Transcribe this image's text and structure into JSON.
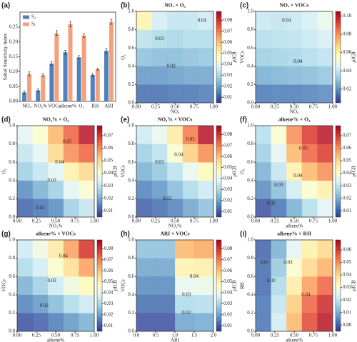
{
  "chart_data": [
    {
      "type": "bar",
      "panel_label": "(a)",
      "ylabel": "Sobol Sensitivity Index",
      "categories": [
        "NOₓ",
        "NO₂%",
        "VOCs",
        "alkene%",
        "O₃",
        "RH",
        "ARI"
      ],
      "series": [
        {
          "name": "S₁",
          "color": "#4f81bd",
          "values": [
            0.03,
            0.037,
            0.127,
            0.165,
            0.148,
            0.089,
            0.17
          ],
          "errors": [
            0.005,
            0.005,
            0.006,
            0.007,
            0.006,
            0.005,
            0.008
          ]
        },
        {
          "name": "Sₜ",
          "color": "#f4a07c",
          "values": [
            0.092,
            0.088,
            0.23,
            0.26,
            0.222,
            0.108,
            0.267
          ],
          "errors": [
            0.007,
            0.005,
            0.008,
            0.009,
            0.007,
            0.004,
            0.008
          ]
        }
      ],
      "ylim": [
        0,
        0.3
      ],
      "yticks": [
        {
          "value": 0,
          "label": "0.00"
        },
        0.05,
        {
          "value": 0.1,
          "label": "0.10"
        },
        0.15,
        {
          "value": 0.2,
          "label": "0.20"
        },
        0.25
      ],
      "legend": "upper left"
    },
    {
      "type": "heatmap",
      "panel_label": "(b)",
      "title": "NOₓ × O₃",
      "xlabel": "NOₓ",
      "ylabel": "O₃",
      "colorbar_label": "pICB",
      "xlim": [
        0,
        1
      ],
      "ylim": [
        0,
        1
      ],
      "clim": [
        0.005,
        0.088
      ],
      "xticks": [
        {
          "value": 0,
          "label": "0.00"
        },
        {
          "value": 0.25,
          "label": "0.25"
        },
        {
          "value": 0.5,
          "label": "0.50"
        },
        {
          "value": 0.75,
          "label": "0.75"
        },
        {
          "value": 1,
          "label": "1.00"
        }
      ],
      "yticks": [
        {
          "value": 0,
          "label": "0.0"
        },
        {
          "value": 0.2,
          "label": "0.2"
        },
        {
          "value": 0.4,
          "label": "0.4"
        },
        {
          "value": 0.6,
          "label": "0.6"
        },
        {
          "value": 0.8,
          "label": "0.8"
        },
        {
          "value": 1,
          "label": "1.0"
        }
      ],
      "cticks": [
        0.01,
        0.02,
        0.03,
        0.04,
        0.05,
        0.06,
        0.07,
        0.08
      ],
      "z": [
        [
          0.012,
          0.012,
          0.013,
          0.013,
          0.014
        ],
        [
          0.018,
          0.018,
          0.019,
          0.02,
          0.02
        ],
        [
          0.025,
          0.024,
          0.024,
          0.025,
          0.026
        ],
        [
          0.032,
          0.03,
          0.029,
          0.03,
          0.03
        ],
        [
          0.05,
          0.036,
          0.033,
          0.033,
          0.035
        ]
      ],
      "contour_labels": [
        {
          "label": "0.03",
          "x": 0.3,
          "y": 0.7
        },
        {
          "label": "0.02",
          "x": 0.45,
          "y": 0.4
        },
        {
          "label": "0.04",
          "x": 0.85,
          "y": 0.9
        }
      ]
    },
    {
      "type": "heatmap",
      "panel_label": "(c)",
      "title": "NOₓ × VOCs",
      "xlabel": "NOₓ",
      "ylabel": "VOCs",
      "colorbar_label": "pICB",
      "xlim": [
        0,
        1
      ],
      "ylim": [
        0,
        1
      ],
      "clim": [
        0.005,
        0.105
      ],
      "xticks": [
        {
          "value": 0,
          "label": "0.00"
        },
        {
          "value": 0.25,
          "label": "0.25"
        },
        {
          "value": 0.5,
          "label": "0.50"
        },
        {
          "value": 0.75,
          "label": "0.75"
        },
        {
          "value": 1,
          "label": "1.00"
        }
      ],
      "yticks": [
        {
          "value": 0,
          "label": "0.0"
        },
        {
          "value": 0.2,
          "label": "0.2"
        },
        {
          "value": 0.4,
          "label": "0.4"
        },
        {
          "value": 0.6,
          "label": "0.6"
        },
        {
          "value": 0.8,
          "label": "0.8"
        },
        {
          "value": 1,
          "label": "1.0"
        }
      ],
      "cticks": [
        0.02,
        0.04,
        0.06,
        0.08,
        {
          "value": 0.1,
          "label": "0.10"
        }
      ],
      "z": [
        [
          0.015,
          0.016,
          0.016,
          0.017,
          0.018
        ],
        [
          0.025,
          0.026,
          0.027,
          0.028,
          0.03
        ],
        [
          0.032,
          0.033,
          0.034,
          0.036,
          0.038
        ],
        [
          0.036,
          0.037,
          0.038,
          0.04,
          0.043
        ],
        [
          0.04,
          0.039,
          0.04,
          0.043,
          0.048
        ]
      ],
      "contour_labels": [
        {
          "label": "0.04",
          "x": 0.4,
          "y": 0.9
        },
        {
          "label": "0.04",
          "x": 0.55,
          "y": 0.45
        }
      ]
    },
    {
      "type": "heatmap",
      "panel_label": "(d)",
      "title": "NO₂% × O₃",
      "xlabel": "NO₂%",
      "ylabel": "O₃",
      "colorbar_label": "pICB",
      "xlim": [
        0,
        1
      ],
      "ylim": [
        0,
        1
      ],
      "clim": [
        0.005,
        0.078
      ],
      "xticks": [
        {
          "value": 0,
          "label": "0.00"
        },
        {
          "value": 0.25,
          "label": "0.25"
        },
        {
          "value": 0.5,
          "label": "0.50"
        },
        {
          "value": 0.75,
          "label": "0.75"
        },
        {
          "value": 1,
          "label": "1.00"
        }
      ],
      "yticks": [
        {
          "value": 0,
          "label": "0.0"
        },
        {
          "value": 0.2,
          "label": "0.2"
        },
        {
          "value": 0.4,
          "label": "0.4"
        },
        {
          "value": 0.6,
          "label": "0.6"
        },
        {
          "value": 0.8,
          "label": "0.8"
        },
        {
          "value": 1,
          "label": "1.0"
        }
      ],
      "cticks": [
        0.01,
        0.02,
        0.03,
        0.04,
        0.05,
        0.06,
        0.07
      ],
      "z": [
        [
          0.01,
          0.012,
          0.015,
          0.025,
          0.03
        ],
        [
          0.015,
          0.02,
          0.025,
          0.035,
          0.04
        ],
        [
          0.025,
          0.03,
          0.035,
          0.045,
          0.05
        ],
        [
          0.03,
          0.035,
          0.05,
          0.06,
          0.065
        ],
        [
          0.035,
          0.04,
          0.055,
          0.065,
          0.075
        ]
      ],
      "contour_labels": [
        {
          "label": "0.05",
          "x": 0.65,
          "y": 0.82
        },
        {
          "label": "0.04",
          "x": 0.55,
          "y": 0.6
        },
        {
          "label": "0.03",
          "x": 0.45,
          "y": 0.4
        },
        {
          "label": "0.02",
          "x": 0.3,
          "y": 0.1
        }
      ]
    },
    {
      "type": "heatmap",
      "panel_label": "(e)",
      "title": "NO₂% × VOCs",
      "xlabel": "NO₂%",
      "ylabel": "VOCs",
      "colorbar_label": "pICB",
      "xlim": [
        0,
        1
      ],
      "ylim": [
        0,
        1
      ],
      "clim": [
        0.005,
        0.088
      ],
      "xticks": [
        {
          "value": 0,
          "label": "0.00"
        },
        {
          "value": 0.25,
          "label": "0.25"
        },
        {
          "value": 0.5,
          "label": "0.50"
        },
        {
          "value": 0.75,
          "label": "0.75"
        },
        {
          "value": 1,
          "label": "1.00"
        }
      ],
      "yticks": [
        {
          "value": 0,
          "label": "0.0"
        },
        {
          "value": 0.2,
          "label": "0.2"
        },
        {
          "value": 0.4,
          "label": "0.4"
        },
        {
          "value": 0.6,
          "label": "0.6"
        },
        {
          "value": 0.8,
          "label": "0.8"
        },
        {
          "value": 1,
          "label": "1.0"
        }
      ],
      "cticks": [
        0.01,
        0.02,
        0.03,
        0.04,
        0.05,
        0.06,
        0.07,
        0.08
      ],
      "z": [
        [
          0.01,
          0.012,
          0.015,
          0.02,
          0.025
        ],
        [
          0.015,
          0.018,
          0.024,
          0.03,
          0.035
        ],
        [
          0.022,
          0.026,
          0.032,
          0.04,
          0.048
        ],
        [
          0.028,
          0.032,
          0.045,
          0.058,
          0.068
        ],
        [
          0.035,
          0.04,
          0.052,
          0.07,
          0.085
        ]
      ],
      "contour_labels": [
        {
          "label": "0.05",
          "x": 0.7,
          "y": 0.85
        },
        {
          "label": "0.04",
          "x": 0.55,
          "y": 0.68
        },
        {
          "label": "0.03",
          "x": 0.3,
          "y": 0.6
        },
        {
          "label": "0.02",
          "x": 0.4,
          "y": 0.2
        }
      ]
    },
    {
      "type": "heatmap",
      "panel_label": "(f)",
      "title": "alkene% × O₃",
      "xlabel": "alkene%",
      "ylabel": "O₃",
      "colorbar_label": "pICB",
      "xlim": [
        0,
        1
      ],
      "ylim": [
        0,
        1
      ],
      "clim": [
        0.005,
        0.078
      ],
      "xticks": [
        {
          "value": 0,
          "label": "0.00"
        },
        {
          "value": 0.25,
          "label": "0.25"
        },
        {
          "value": 0.5,
          "label": "0.50"
        },
        {
          "value": 0.75,
          "label": "0.75"
        },
        {
          "value": 1,
          "label": "1.00"
        }
      ],
      "yticks": [
        {
          "value": 0,
          "label": "0.0"
        },
        {
          "value": 0.2,
          "label": "0.2"
        },
        {
          "value": 0.4,
          "label": "0.4"
        },
        {
          "value": 0.6,
          "label": "0.6"
        },
        {
          "value": 0.8,
          "label": "0.8"
        },
        {
          "value": 1,
          "label": "1.0"
        }
      ],
      "cticks": [
        0.01,
        0.02,
        0.03,
        0.04,
        0.05,
        0.06,
        0.07
      ],
      "z": [
        [
          0.008,
          0.012,
          0.02,
          0.028,
          0.035
        ],
        [
          0.015,
          0.022,
          0.032,
          0.04,
          0.045
        ],
        [
          0.02,
          0.03,
          0.045,
          0.055,
          0.06
        ],
        [
          0.025,
          0.035,
          0.055,
          0.065,
          0.07
        ],
        [
          0.028,
          0.04,
          0.06,
          0.07,
          0.075
        ]
      ],
      "contour_labels": [
        {
          "label": "0.05",
          "x": 0.62,
          "y": 0.75
        },
        {
          "label": "0.04",
          "x": 0.55,
          "y": 0.45
        },
        {
          "label": "0.03",
          "x": 0.3,
          "y": 0.35
        },
        {
          "label": "0.02",
          "x": 0.2,
          "y": 0.15
        }
      ]
    },
    {
      "type": "heatmap",
      "panel_label": "(g)",
      "title": "alkene% × VOCs",
      "xlabel": "alkene%",
      "ylabel": "VOCs",
      "colorbar_label": "pICB",
      "xlim": [
        0,
        1
      ],
      "ylim": [
        0,
        1
      ],
      "clim": [
        0.005,
        0.088
      ],
      "xticks": [
        {
          "value": 0,
          "label": "0.00"
        },
        {
          "value": 0.25,
          "label": "0.25"
        },
        {
          "value": 0.5,
          "label": "0.50"
        },
        {
          "value": 0.75,
          "label": "0.75"
        },
        {
          "value": 1,
          "label": "1.00"
        }
      ],
      "yticks": [
        {
          "value": 0,
          "label": "0.0"
        },
        {
          "value": 0.2,
          "label": "0.2"
        },
        {
          "value": 0.4,
          "label": "0.4"
        },
        {
          "value": 0.6,
          "label": "0.6"
        },
        {
          "value": 0.8,
          "label": "0.8"
        },
        {
          "value": 1,
          "label": "1.0"
        }
      ],
      "cticks": [
        0.01,
        0.02,
        0.03,
        0.04,
        0.05,
        0.06,
        0.07,
        0.08
      ],
      "z": [
        [
          0.008,
          0.01,
          0.014,
          0.018,
          0.022
        ],
        [
          0.015,
          0.018,
          0.024,
          0.03,
          0.035
        ],
        [
          0.022,
          0.028,
          0.035,
          0.042,
          0.048
        ],
        [
          0.03,
          0.036,
          0.045,
          0.055,
          0.065
        ],
        [
          0.035,
          0.042,
          0.052,
          0.065,
          0.08
        ]
      ],
      "contour_labels": [
        {
          "label": "0.04",
          "x": 0.6,
          "y": 0.82
        },
        {
          "label": "0.03",
          "x": 0.45,
          "y": 0.55
        },
        {
          "label": "0.02",
          "x": 0.35,
          "y": 0.28
        }
      ]
    },
    {
      "type": "heatmap",
      "panel_label": "(h)",
      "title": "ARI × VOCs",
      "xlabel": "ARI",
      "ylabel": "VOCs",
      "colorbar_label": "pICB",
      "xlim": [
        0,
        2
      ],
      "ylim": [
        0,
        1
      ],
      "clim": [
        0.005,
        0.088
      ],
      "xticks": [
        {
          "value": 0,
          "label": "0.0"
        },
        0.5,
        {
          "value": 1,
          "label": "1.0"
        },
        1.5,
        {
          "value": 2,
          "label": "2.0"
        }
      ],
      "yticks": [
        {
          "value": 0,
          "label": "0.0"
        },
        {
          "value": 0.2,
          "label": "0.2"
        },
        {
          "value": 0.4,
          "label": "0.4"
        },
        {
          "value": 0.6,
          "label": "0.6"
        },
        {
          "value": 0.8,
          "label": "0.8"
        },
        {
          "value": 1,
          "label": "1.0"
        }
      ],
      "cticks": [
        0.01,
        0.02,
        0.03,
        0.04,
        0.05,
        0.06,
        0.07,
        0.08
      ],
      "z": [
        [
          0.008,
          0.008,
          0.02,
          0.021
        ],
        [
          0.012,
          0.012,
          0.03,
          0.031
        ],
        [
          0.016,
          0.016,
          0.04,
          0.041
        ],
        [
          0.02,
          0.02,
          0.05,
          0.051
        ],
        [
          0.025,
          0.025,
          0.062,
          0.064
        ]
      ],
      "contour_labels": [
        {
          "label": "0.04",
          "x": 1.5,
          "y": 0.6
        },
        {
          "label": "0.03",
          "x": 1.3,
          "y": 0.4
        },
        {
          "label": "0.02",
          "x": 1.3,
          "y": 0.2
        }
      ]
    },
    {
      "type": "heatmap",
      "panel_label": "(i)",
      "title": "alkene% × RH",
      "xlabel": "alkene%",
      "ylabel": "RH",
      "colorbar_label": "pICB",
      "xlim": [
        0,
        1
      ],
      "ylim": [
        0,
        1
      ],
      "clim": [
        -0.005,
        0.068
      ],
      "xticks": [
        {
          "value": 0,
          "label": "0.00"
        },
        {
          "value": 0.25,
          "label": "0.25"
        },
        {
          "value": 0.5,
          "label": "0.50"
        },
        {
          "value": 0.75,
          "label": "0.75"
        },
        {
          "value": 1,
          "label": "1.00"
        }
      ],
      "yticks": [
        {
          "value": 0,
          "label": "0.0"
        },
        {
          "value": 0.2,
          "label": "0.2"
        },
        {
          "value": 0.4,
          "label": "0.4"
        },
        {
          "value": 0.6,
          "label": "0.6"
        },
        {
          "value": 0.8,
          "label": "0.8"
        },
        {
          "value": 1,
          "label": "1.0"
        }
      ],
      "cticks": [
        {
          "value": 0,
          "label": "0.00"
        },
        0.01,
        0.02,
        0.03,
        0.04,
        0.05,
        0.06
      ],
      "z": [
        [
          0.002,
          0.022,
          0.045,
          0.058,
          0.065
        ],
        [
          0.002,
          0.02,
          0.042,
          0.055,
          0.062
        ],
        [
          0.001,
          0.017,
          0.036,
          0.048,
          0.055
        ],
        [
          0.001,
          0.014,
          0.03,
          0.04,
          0.046
        ],
        [
          0.0,
          0.01,
          0.025,
          0.035,
          0.04
        ]
      ],
      "contour_labels": [
        {
          "label": "0.01",
          "x": 0.12,
          "y": 0.75
        },
        {
          "label": "0.02",
          "x": 0.2,
          "y": 0.55
        },
        {
          "label": "0.03",
          "x": 0.42,
          "y": 0.75
        },
        {
          "label": "0.04",
          "x": 0.65,
          "y": 0.4
        }
      ]
    }
  ]
}
